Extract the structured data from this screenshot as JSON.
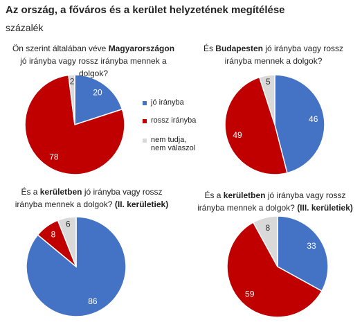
{
  "header": {
    "title": "Az ország, a főváros és a kerület helyzetének megítélése",
    "subtitle": "százalék"
  },
  "chart_data": [
    {
      "type": "pie",
      "title": [
        {
          "text": "Ön szerint általában véve ",
          "bold": false
        },
        {
          "text": "Magyarországon",
          "bold": true
        },
        {
          "text": " jó irányba vagy rossz irányba mennek a dolgok?",
          "bold": false
        }
      ],
      "categories": [
        "jó irányba",
        "rossz irányba",
        "nem tudja, nem válaszol"
      ],
      "values": [
        20,
        78,
        2
      ],
      "colors": [
        "#4472c4",
        "#c00000",
        "#d9d9d9"
      ],
      "legend": true
    },
    {
      "type": "pie",
      "title": [
        {
          "text": "És ",
          "bold": false
        },
        {
          "text": "Budapesten",
          "bold": true
        },
        {
          "text": " jó irányba vagy rossz irányba mennek a dolgok?",
          "bold": false
        }
      ],
      "categories": [
        "jó irányba",
        "rossz irányba",
        "nem tudja, nem válaszol"
      ],
      "values": [
        46,
        49,
        5
      ],
      "colors": [
        "#4472c4",
        "#c00000",
        "#d9d9d9"
      ],
      "legend": false
    },
    {
      "type": "pie",
      "title": [
        {
          "text": "És a ",
          "bold": false
        },
        {
          "text": "kerületben",
          "bold": true
        },
        {
          "text": " jó irányba vagy rossz irányba mennek a dolgok? ",
          "bold": false
        },
        {
          "text": "(II. kerületiek)",
          "bold": true
        }
      ],
      "categories": [
        "jó irányba",
        "rossz irányba",
        "nem tudja, nem válaszol"
      ],
      "values": [
        86,
        8,
        6
      ],
      "colors": [
        "#4472c4",
        "#c00000",
        "#d9d9d9"
      ],
      "legend": false
    },
    {
      "type": "pie",
      "title": [
        {
          "text": "És a ",
          "bold": false
        },
        {
          "text": "kerületben",
          "bold": true
        },
        {
          "text": " jó irányba vagy rossz irányba mennek a dolgok? ",
          "bold": false
        },
        {
          "text": "(III. kerületiek)",
          "bold": true
        }
      ],
      "categories": [
        "jó irányba",
        "rossz irányba",
        "nem tudja, nem válaszol"
      ],
      "values": [
        33,
        59,
        8
      ],
      "colors": [
        "#4472c4",
        "#c00000",
        "#d9d9d9"
      ],
      "legend": false
    }
  ]
}
